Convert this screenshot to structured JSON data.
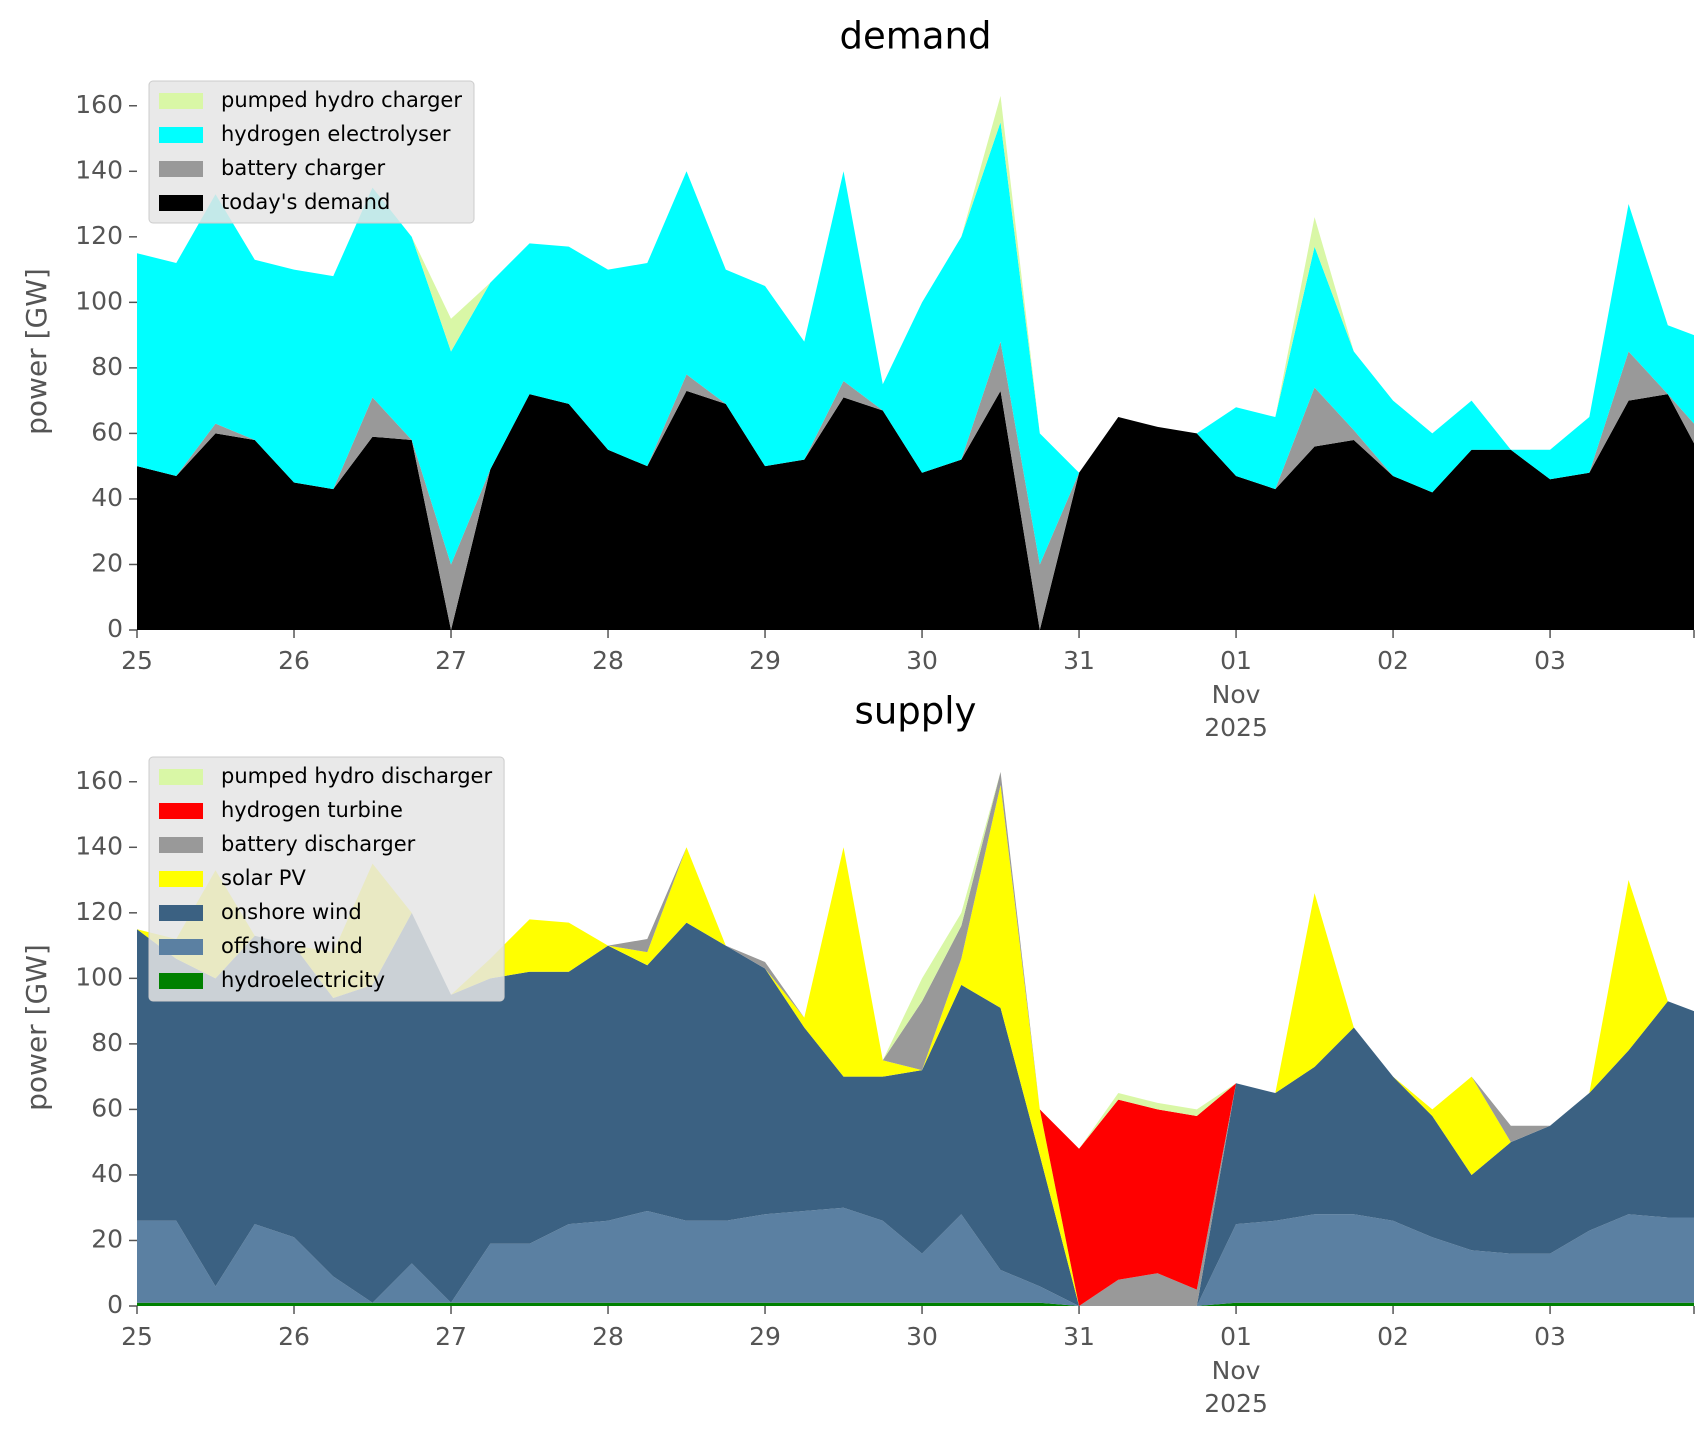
{
  "chart_data": [
    {
      "type": "area",
      "stacked": true,
      "title": "demand",
      "ylabel": "power [GW]",
      "legend": "upper left",
      "x": [
        "2025-10-25T00:00",
        "2025-10-25T06:00",
        "2025-10-25T12:00",
        "2025-10-25T18:00",
        "2025-10-26T00:00",
        "2025-10-26T06:00",
        "2025-10-26T12:00",
        "2025-10-26T18:00",
        "2025-10-27T00:00",
        "2025-10-27T06:00",
        "2025-10-27T12:00",
        "2025-10-27T18:00",
        "2025-10-28T00:00",
        "2025-10-28T06:00",
        "2025-10-28T12:00",
        "2025-10-28T18:00",
        "2025-10-29T00:00",
        "2025-10-29T06:00",
        "2025-10-29T12:00",
        "2025-10-29T18:00",
        "2025-10-30T00:00",
        "2025-10-30T06:00",
        "2025-10-30T12:00",
        "2025-10-30T18:00",
        "2025-10-31T00:00",
        "2025-10-31T06:00",
        "2025-10-31T12:00",
        "2025-10-31T18:00",
        "2025-11-01T00:00",
        "2025-11-01T06:00",
        "2025-11-01T12:00",
        "2025-11-01T18:00",
        "2025-11-02T00:00",
        "2025-11-02T06:00",
        "2025-11-02T12:00",
        "2025-11-02T18:00",
        "2025-11-03T00:00",
        "2025-11-03T06:00",
        "2025-11-03T12:00",
        "2025-11-03T18:00",
        "2025-11-03T22:00"
      ],
      "xlim": [
        "2025-10-25T00:00",
        "2025-11-03T22:00"
      ],
      "xticks": [
        {
          "value": "2025-10-25T00:00",
          "label": "25"
        },
        {
          "value": "2025-10-26T00:00",
          "label": "26"
        },
        {
          "value": "2025-10-27T00:00",
          "label": "27"
        },
        {
          "value": "2025-10-28T00:00",
          "label": "28"
        },
        {
          "value": "2025-10-29T00:00",
          "label": "29"
        },
        {
          "value": "2025-10-30T00:00",
          "label": "30"
        },
        {
          "value": "2025-10-31T00:00",
          "label": "31"
        },
        {
          "value": "2025-11-01T00:00",
          "label": "01",
          "sublabels": [
            "Nov",
            "2025"
          ]
        },
        {
          "value": "2025-11-02T00:00",
          "label": "02"
        },
        {
          "value": "2025-11-03T00:00",
          "label": "03"
        }
      ],
      "ylim": [
        0,
        170
      ],
      "yticks": [
        0,
        20,
        40,
        60,
        80,
        100,
        120,
        140,
        160
      ],
      "series": [
        {
          "name": "today's demand",
          "color": "#000000",
          "values": [
            50,
            47,
            60,
            58,
            45,
            43,
            59,
            58,
            0,
            49,
            72,
            69,
            55,
            50,
            73,
            69,
            50,
            52,
            71,
            67,
            48,
            52,
            73,
            0,
            48,
            65,
            62,
            60,
            47,
            43,
            56,
            58,
            47,
            42,
            55,
            55,
            46,
            48,
            70,
            72,
            57
          ]
        },
        {
          "name": "battery charger",
          "color": "#999999",
          "values": [
            0,
            0,
            3,
            0,
            0,
            0,
            12,
            0,
            20,
            0,
            0,
            0,
            0,
            0,
            5,
            0,
            0,
            0,
            5,
            0,
            0,
            0,
            15,
            20,
            0,
            0,
            0,
            0,
            0,
            0,
            18,
            3,
            0,
            0,
            0,
            0,
            0,
            0,
            15,
            0,
            6
          ]
        },
        {
          "name": "hydrogen electrolyser",
          "color": "#00ffff",
          "values": [
            65,
            65,
            70,
            55,
            65,
            65,
            64,
            62,
            65,
            57,
            46,
            48,
            55,
            62,
            62,
            41,
            55,
            36,
            64,
            8,
            52,
            68,
            67,
            40,
            0,
            0,
            0,
            0,
            21,
            22,
            43,
            24,
            23,
            18,
            15,
            0,
            9,
            17,
            45,
            21,
            27
          ]
        },
        {
          "name": "pumped hydro charger",
          "color": "#d9f7a6",
          "values": [
            0,
            0,
            0,
            0,
            0,
            0,
            0,
            0,
            10,
            0,
            0,
            0,
            0,
            0,
            0,
            0,
            0,
            0,
            0,
            0,
            0,
            0,
            8,
            0,
            0,
            0,
            0,
            0,
            0,
            0,
            9,
            0,
            0,
            0,
            0,
            0,
            0,
            0,
            0,
            0,
            0
          ]
        }
      ]
    },
    {
      "type": "area",
      "stacked": true,
      "title": "supply",
      "ylabel": "power [GW]",
      "legend": "upper left",
      "x": [
        "2025-10-25T00:00",
        "2025-10-25T06:00",
        "2025-10-25T12:00",
        "2025-10-25T18:00",
        "2025-10-26T00:00",
        "2025-10-26T06:00",
        "2025-10-26T12:00",
        "2025-10-26T18:00",
        "2025-10-27T00:00",
        "2025-10-27T06:00",
        "2025-10-27T12:00",
        "2025-10-27T18:00",
        "2025-10-28T00:00",
        "2025-10-28T06:00",
        "2025-10-28T12:00",
        "2025-10-28T18:00",
        "2025-10-29T00:00",
        "2025-10-29T06:00",
        "2025-10-29T12:00",
        "2025-10-29T18:00",
        "2025-10-30T00:00",
        "2025-10-30T06:00",
        "2025-10-30T12:00",
        "2025-10-30T18:00",
        "2025-10-31T00:00",
        "2025-10-31T06:00",
        "2025-10-31T12:00",
        "2025-10-31T18:00",
        "2025-11-01T00:00",
        "2025-11-01T06:00",
        "2025-11-01T12:00",
        "2025-11-01T18:00",
        "2025-11-02T00:00",
        "2025-11-02T06:00",
        "2025-11-02T12:00",
        "2025-11-02T18:00",
        "2025-11-03T00:00",
        "2025-11-03T06:00",
        "2025-11-03T12:00",
        "2025-11-03T18:00",
        "2025-11-03T22:00"
      ],
      "xlim": [
        "2025-10-25T00:00",
        "2025-11-03T22:00"
      ],
      "xticks": [
        {
          "value": "2025-10-25T00:00",
          "label": "25"
        },
        {
          "value": "2025-10-26T00:00",
          "label": "26"
        },
        {
          "value": "2025-10-27T00:00",
          "label": "27"
        },
        {
          "value": "2025-10-28T00:00",
          "label": "28"
        },
        {
          "value": "2025-10-29T00:00",
          "label": "29"
        },
        {
          "value": "2025-10-30T00:00",
          "label": "30"
        },
        {
          "value": "2025-10-31T00:00",
          "label": "31"
        },
        {
          "value": "2025-11-01T00:00",
          "label": "01",
          "sublabels": [
            "Nov",
            "2025"
          ]
        },
        {
          "value": "2025-11-02T00:00",
          "label": "02"
        },
        {
          "value": "2025-11-03T00:00",
          "label": "03"
        }
      ],
      "ylim": [
        0,
        170
      ],
      "yticks": [
        0,
        20,
        40,
        60,
        80,
        100,
        120,
        140,
        160
      ],
      "series": [
        {
          "name": "hydroelectricity",
          "color": "#008000",
          "values": [
            1,
            1,
            1,
            1,
            1,
            1,
            1,
            1,
            1,
            1,
            1,
            1,
            1,
            1,
            1,
            1,
            1,
            1,
            1,
            1,
            1,
            1,
            1,
            1,
            0,
            0,
            0,
            0,
            1,
            1,
            1,
            1,
            1,
            1,
            1,
            1,
            1,
            1,
            1,
            1,
            1
          ]
        },
        {
          "name": "offshore wind",
          "color": "#5b80a2",
          "values": [
            25,
            25,
            5,
            24,
            20,
            8,
            0,
            12,
            0,
            18,
            18,
            24,
            25,
            28,
            25,
            25,
            27,
            28,
            29,
            25,
            15,
            27,
            10,
            5,
            0,
            0,
            0,
            0,
            24,
            25,
            27,
            27,
            25,
            20,
            16,
            15,
            15,
            22,
            27,
            26,
            26
          ]
        },
        {
          "name": "onshore wind",
          "color": "#3b6182",
          "values": [
            89,
            80,
            94,
            88,
            89,
            85,
            97,
            107,
            94,
            81,
            83,
            77,
            84,
            75,
            91,
            84,
            75,
            56,
            40,
            44,
            56,
            70,
            80,
            40,
            0,
            0,
            0,
            0,
            43,
            39,
            45,
            57,
            44,
            37,
            23,
            34,
            39,
            42,
            50,
            66,
            63
          ]
        },
        {
          "name": "solar PV",
          "color": "#ffff00",
          "values": [
            0,
            6,
            33,
            0,
            0,
            14,
            37,
            0,
            0,
            6,
            16,
            15,
            0,
            4,
            23,
            0,
            0,
            3,
            70,
            5,
            0,
            8,
            68,
            14,
            0,
            0,
            0,
            0,
            0,
            0,
            53,
            0,
            0,
            2,
            30,
            0,
            0,
            0,
            52,
            0,
            0
          ]
        },
        {
          "name": "battery discharger",
          "color": "#999999",
          "values": [
            0,
            0,
            0,
            0,
            0,
            0,
            0,
            0,
            0,
            0,
            0,
            0,
            0,
            4,
            0,
            0,
            2,
            0,
            0,
            0,
            21,
            10,
            4,
            0,
            0,
            8,
            10,
            5,
            0,
            0,
            0,
            0,
            0,
            0,
            0,
            5,
            0,
            0,
            0,
            0,
            0
          ]
        },
        {
          "name": "hydrogen turbine",
          "color": "#ff0000",
          "values": [
            0,
            0,
            0,
            0,
            0,
            0,
            0,
            0,
            0,
            0,
            0,
            0,
            0,
            0,
            0,
            0,
            0,
            0,
            0,
            0,
            0,
            0,
            0,
            0,
            48,
            55,
            50,
            53,
            0,
            0,
            0,
            0,
            0,
            0,
            0,
            0,
            0,
            0,
            0,
            0,
            0
          ]
        },
        {
          "name": "pumped hydro discharger",
          "color": "#d9f7a6",
          "values": [
            0,
            0,
            0,
            0,
            0,
            0,
            0,
            0,
            0,
            0,
            0,
            0,
            0,
            0,
            0,
            0,
            0,
            0,
            0,
            0,
            7,
            4,
            0,
            0,
            0,
            2,
            2,
            2,
            0,
            0,
            0,
            0,
            0,
            0,
            0,
            0,
            0,
            0,
            0,
            0,
            0
          ]
        }
      ]
    }
  ]
}
